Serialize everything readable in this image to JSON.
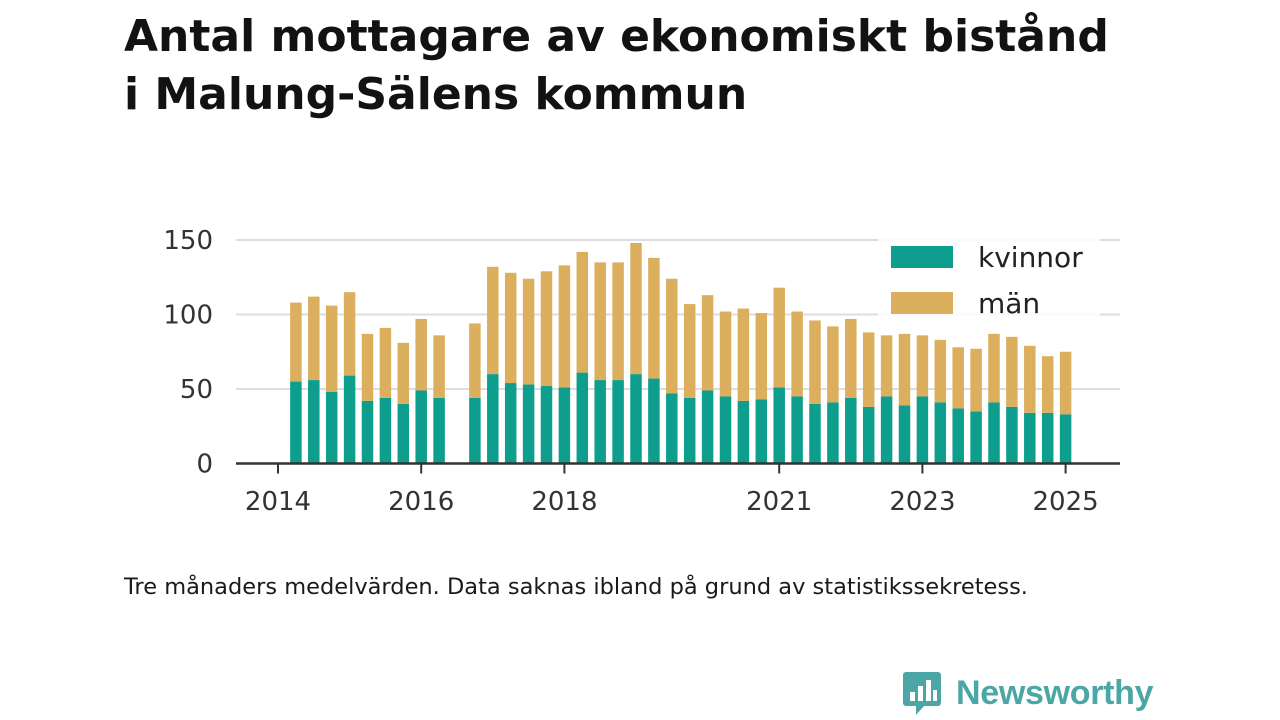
{
  "title": {
    "line1": "Antal mottagare av ekonomiskt bistånd",
    "line2": "i Malung-Sälens kommun"
  },
  "caption": "Tre månaders medelvärden. Data saknas ibland på grund av statistikssekretess.",
  "brand": {
    "name": "Newsworthy",
    "icon": "chart-bubble-icon",
    "color": "#4aa7a5"
  },
  "chart_data": {
    "type": "bar",
    "stacked": true,
    "x_ticks": [
      2014,
      2016,
      2018,
      2021,
      2023,
      2025
    ],
    "y_ticks": [
      0,
      50,
      100,
      150
    ],
    "ylim": [
      0,
      150
    ],
    "grid": true,
    "legend_position": "top-right",
    "periods": [
      2014.25,
      2014.5,
      2014.75,
      2015.0,
      2015.25,
      2015.5,
      2015.75,
      2016.0,
      2016.25,
      2016.75,
      2017.0,
      2017.25,
      2017.5,
      2017.75,
      2018.0,
      2018.25,
      2018.5,
      2018.75,
      2019.0,
      2019.25,
      2019.5,
      2019.75,
      2020.0,
      2020.25,
      2020.5,
      2020.75,
      2021.0,
      2021.25,
      2021.5,
      2021.75,
      2022.0,
      2022.25,
      2022.5,
      2022.75,
      2023.0,
      2023.25,
      2023.5,
      2023.75,
      2024.0,
      2024.25,
      2024.5,
      2024.75,
      2025.0
    ],
    "series": [
      {
        "name": "kvinnor",
        "color": "#0d9e8e",
        "values": [
          55,
          56,
          48,
          59,
          42,
          44,
          40,
          49,
          44,
          44,
          60,
          54,
          53,
          52,
          51,
          61,
          56,
          56,
          60,
          57,
          47,
          44,
          49,
          45,
          42,
          43,
          51,
          45,
          40,
          41,
          44,
          38,
          45,
          39,
          45,
          41,
          37,
          35,
          41,
          38,
          34,
          34,
          33
        ]
      },
      {
        "name": "män",
        "color": "#dcaf5e",
        "values": [
          53,
          56,
          58,
          56,
          45,
          47,
          41,
          48,
          42,
          50,
          72,
          74,
          71,
          77,
          82,
          81,
          79,
          79,
          88,
          81,
          77,
          63,
          64,
          57,
          62,
          58,
          67,
          57,
          56,
          51,
          53,
          50,
          41,
          48,
          41,
          42,
          41,
          42,
          46,
          47,
          45,
          38,
          42
        ]
      }
    ]
  }
}
